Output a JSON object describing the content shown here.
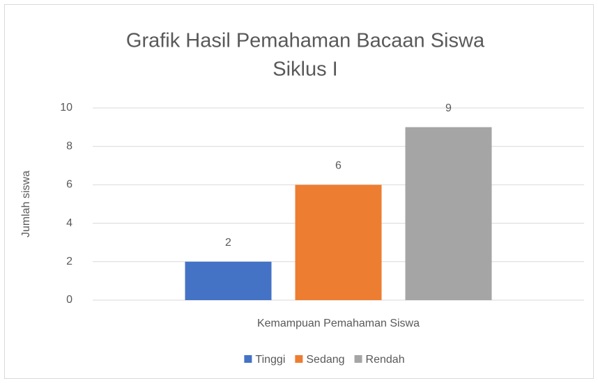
{
  "chart_data": {
    "type": "bar",
    "title": [
      "Grafik Hasil Pemahaman Bacaan Siswa",
      "Siklus I"
    ],
    "y_label": "Jumlah siswa",
    "categories": [
      "Kemampuan Pemahaman Siswa"
    ],
    "series": [
      {
        "name": "Tinggi",
        "color": "#4472c4",
        "values": [
          2
        ]
      },
      {
        "name": "Sedang",
        "color": "#ed7d31",
        "values": [
          6
        ]
      },
      {
        "name": "Rendah",
        "color": "#a5a5a5",
        "values": [
          9
        ]
      }
    ],
    "ylim": [
      0,
      10
    ],
    "yticks": [
      0,
      2,
      4,
      6,
      8,
      10
    ],
    "grid": true,
    "legend": "bottom"
  }
}
